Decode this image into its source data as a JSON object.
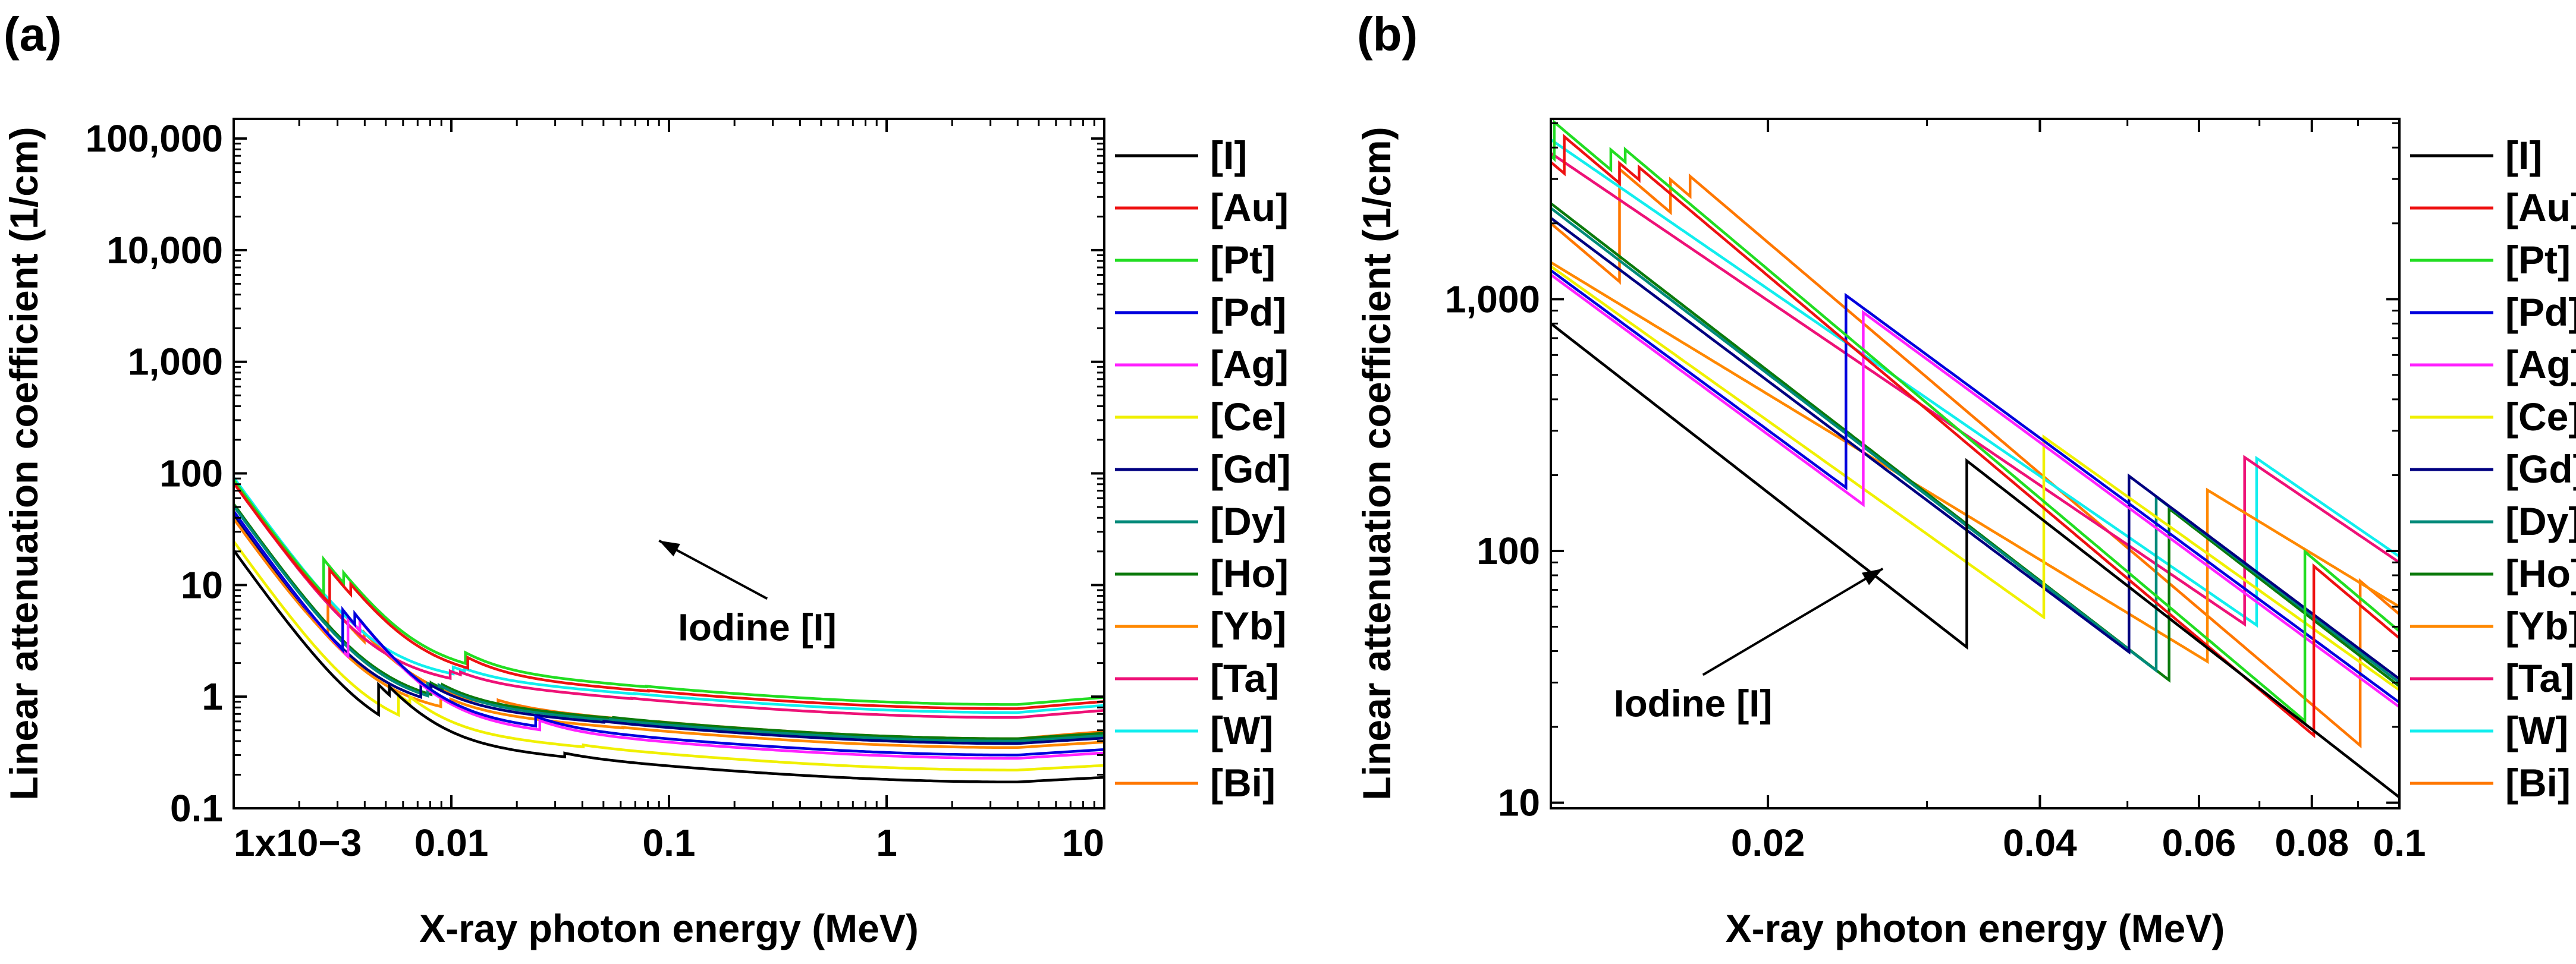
{
  "colors": {
    "I": "#000000",
    "Au": "#ee1111",
    "Pt": "#22dd22",
    "Pd": "#0000dd",
    "Ag": "#ff22ff",
    "Ce": "#f0f000",
    "Gd": "#000080",
    "Dy": "#008a7a",
    "Ho": "#0b7a0b",
    "Yb": "#ff8800",
    "Ta": "#ee1177",
    "W": "#11eeee",
    "Bi": "#ff7700"
  },
  "chart_data": [
    {
      "panel_label": "(a)",
      "type": "line",
      "xscale": "log",
      "yscale": "log",
      "xlim": [
        0.001,
        10
      ],
      "ylim": [
        0.1,
        150000
      ],
      "xlabel": "X-ray photon energy (MeV)",
      "ylabel": "Linear attenuation coefficient (1/cm)",
      "xticks": [
        {
          "value": 0.001,
          "label": "1x10−3"
        },
        {
          "value": 0.01,
          "label": "0.01"
        },
        {
          "value": 0.1,
          "label": "0.1"
        },
        {
          "value": 1,
          "label": "1"
        },
        {
          "value": 10,
          "label": "10"
        }
      ],
      "yticks": [
        {
          "value": 0.1,
          "label": "0.1"
        },
        {
          "value": 1,
          "label": "1"
        },
        {
          "value": 10,
          "label": "10"
        },
        {
          "value": 100,
          "label": "100"
        },
        {
          "value": 1000,
          "label": "1,000"
        },
        {
          "value": 10000,
          "label": "10,000"
        },
        {
          "value": 100000,
          "label": "100,000"
        }
      ],
      "annotation": {
        "text": "Iodine [I]",
        "text_at": [
          0.11,
          3.2
        ],
        "arrow_to": [
          0.09,
          25
        ]
      },
      "series": [
        {
          "name": "[I]",
          "key": "I",
          "k": 20,
          "edges": [
            [
              0.00463,
              3.0
            ],
            [
              0.00519,
              1.3
            ],
            [
              0.0332,
              5.5
            ]
          ],
          "min": 0.172,
          "rise": 0.025
        },
        {
          "name": "[Au]",
          "key": "Au",
          "k": 80,
          "edges": [
            [
              0.00276,
              2.4
            ],
            [
              0.00345,
              1.3
            ],
            [
              0.0119,
              2.6
            ],
            [
              0.0804,
              4.7
            ]
          ],
          "min": 0.78,
          "rise": 0.04
        },
        {
          "name": "[Pt]",
          "key": "Pt",
          "k": 85,
          "edges": [
            [
              0.00259,
              2.4
            ],
            [
              0.0032,
              1.3
            ],
            [
              0.0116,
              2.6
            ],
            [
              0.0786,
              4.7
            ]
          ],
          "min": 0.85,
          "rise": 0.04
        },
        {
          "name": "[Pd]",
          "key": "Pd",
          "k": 45,
          "edges": [
            [
              0.00317,
              2.8
            ],
            [
              0.0036,
              1.3
            ],
            [
              0.0244,
              5.8
            ]
          ],
          "min": 0.3,
          "rise": 0.03
        },
        {
          "name": "[Ag]",
          "key": "Ag",
          "k": 45,
          "edges": [
            [
              0.00335,
              2.8
            ],
            [
              0.0038,
              1.3
            ],
            [
              0.0255,
              5.8
            ]
          ],
          "min": 0.28,
          "rise": 0.03
        },
        {
          "name": "[Ce]",
          "key": "Ce",
          "k": 24,
          "edges": [
            [
              0.00572,
              2.8
            ],
            [
              0.00645,
              1.3
            ],
            [
              0.0404,
              5.2
            ]
          ],
          "min": 0.22,
          "rise": 0.025
        },
        {
          "name": "[Gd]",
          "key": "Gd",
          "k": 42,
          "edges": [
            [
              0.00724,
              2.7
            ],
            [
              0.00804,
              1.3
            ],
            [
              0.0502,
              5.0
            ]
          ],
          "min": 0.38,
          "rise": 0.03
        },
        {
          "name": "[Dy]",
          "key": "Dy",
          "k": 50,
          "edges": [
            [
              0.00779,
              2.7
            ],
            [
              0.00877,
              1.3
            ],
            [
              0.0538,
              4.9
            ]
          ],
          "min": 0.4,
          "rise": 0.03
        },
        {
          "name": "[Ho]",
          "key": "Ho",
          "k": 52,
          "edges": [
            [
              0.00807,
              2.7
            ],
            [
              0.00911,
              1.3
            ],
            [
              0.0556,
              4.8
            ]
          ],
          "min": 0.42,
          "rise": 0.03
        },
        {
          "name": "[Yb]",
          "key": "Yb",
          "k": 40,
          "edges": [
            [
              0.00894,
              2.6
            ],
            [
              0.00994,
              1.3
            ],
            [
              0.0613,
              4.8
            ]
          ],
          "min": 0.35,
          "rise": 0.03
        },
        {
          "name": "[Ta]",
          "key": "Ta",
          "k": 80,
          "edges": [
            [
              0.00988,
              2.6
            ],
            [
              0.01101,
              1.3
            ],
            [
              0.0674,
              4.6
            ]
          ],
          "min": 0.65,
          "rise": 0.04
        },
        {
          "name": "[W]",
          "key": "W",
          "k": 90,
          "edges": [
            [
              0.0102,
              2.6
            ],
            [
              0.0115,
              1.3
            ],
            [
              0.0695,
              4.6
            ]
          ],
          "min": 0.72,
          "rise": 0.04
        },
        {
          "name": "[Bi]",
          "key": "Bi",
          "k": 38,
          "edges": [
            [
              0.00271,
              2.5
            ],
            [
              0.00398,
              1.3
            ],
            [
              0.0164,
              2.7
            ],
            [
              0.0905,
              4.5
            ]
          ],
          "min": 0.42,
          "rise": 0.04
        }
      ]
    },
    {
      "panel_label": "(b)",
      "type": "line",
      "xscale": "log",
      "yscale": "log",
      "xlim": [
        0.0115,
        0.1
      ],
      "ylim": [
        9.5,
        5200
      ],
      "xlabel": "X-ray photon energy (MeV)",
      "ylabel": "Linear attenuation coefficient (1/cm)",
      "xticks": [
        {
          "value": 0.02,
          "label": "0.02"
        },
        {
          "value": 0.04,
          "label": "0.04"
        },
        {
          "value": 0.06,
          "label": "0.06"
        },
        {
          "value": 0.08,
          "label": "0.08"
        },
        {
          "value": 0.1,
          "label": "0.1"
        }
      ],
      "yticks": [
        {
          "value": 10,
          "label": "10"
        },
        {
          "value": 100,
          "label": "100"
        },
        {
          "value": 1000,
          "label": "1,000"
        }
      ],
      "annotation": {
        "text": "Iodine [I]",
        "text_at": [
          0.0135,
          22
        ],
        "arrow_to": [
          0.0268,
          85
        ]
      },
      "series": [
        {
          "name": "[I]",
          "key": "I",
          "v0": 800,
          "endV": 10.5,
          "edges": [
            [
              0.0332,
              5.5
            ]
          ]
        },
        {
          "name": "[Au]",
          "key": "Au",
          "v0": 3500,
          "endV": 45,
          "edges": [
            [
              0.0119,
              1.4
            ],
            [
              0.0137,
              1.2
            ],
            [
              0.0144,
              1.12
            ],
            [
              0.0804,
              4.7
            ]
          ]
        },
        {
          "name": "[Pt]",
          "key": "Pt",
          "v0": 3700,
          "endV": 48,
          "edges": [
            [
              0.0116,
              1.4
            ],
            [
              0.0134,
              1.2
            ],
            [
              0.0139,
              1.12
            ],
            [
              0.0786,
              4.7
            ]
          ]
        },
        {
          "name": "[Pd]",
          "key": "Pd",
          "v0": 1300,
          "endV": 25,
          "edges": [
            [
              0.0244,
              5.8
            ]
          ]
        },
        {
          "name": "[Ag]",
          "key": "Ag",
          "v0": 1250,
          "endV": 24,
          "edges": [
            [
              0.0255,
              5.8
            ]
          ]
        },
        {
          "name": "[Ce]",
          "key": "Ce",
          "v0": 1350,
          "endV": 28,
          "edges": [
            [
              0.0404,
              5.2
            ]
          ]
        },
        {
          "name": "[Gd]",
          "key": "Gd",
          "v0": 2100,
          "endV": 31,
          "edges": [
            [
              0.0502,
              5.0
            ]
          ]
        },
        {
          "name": "[Dy]",
          "key": "Dy",
          "v0": 2300,
          "endV": 30,
          "edges": [
            [
              0.0538,
              4.9
            ]
          ]
        },
        {
          "name": "[Ho]",
          "key": "Ho",
          "v0": 2400,
          "endV": 29,
          "edges": [
            [
              0.0556,
              4.8
            ]
          ]
        },
        {
          "name": "[Yb]",
          "key": "Yb",
          "v0": 1400,
          "endV": 60,
          "edges": [
            [
              0.0613,
              4.8
            ]
          ]
        },
        {
          "name": "[Ta]",
          "key": "Ta",
          "v0": 3800,
          "endV": 90,
          "edges": [
            [
              0.0674,
              4.6
            ]
          ]
        },
        {
          "name": "[W]",
          "key": "W",
          "v0": 4300,
          "endV": 95,
          "edges": [
            [
              0.0695,
              4.6
            ]
          ]
        },
        {
          "name": "[Bi]",
          "key": "Bi",
          "v0": 2000,
          "endV": 56,
          "edges": [
            [
              0.0137,
              2.8
            ],
            [
              0.0156,
              1.35
            ],
            [
              0.0164,
              1.2
            ],
            [
              0.0905,
              4.5
            ]
          ]
        }
      ]
    }
  ]
}
